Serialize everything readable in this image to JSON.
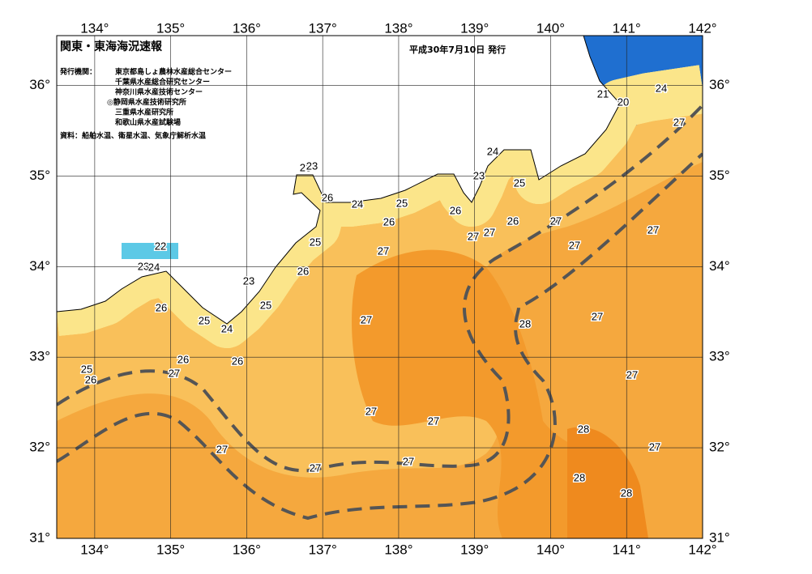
{
  "map": {
    "title": "関東・東海海況速報",
    "date": "平成30年7月10日 発行",
    "issuer_label": "発行機関：",
    "issuers": [
      "東京都島しょ農林水産総合センター",
      "千葉県水産総合研究センター",
      "神奈川県水産技術センター",
      "◎静岡県水産技術研究所",
      "三重県水産研究所",
      "和歌山県水産試験場"
    ],
    "source": "資料：船舶水温、衛星水温、気象庁解析水温",
    "xlim": [
      133.5,
      142
    ],
    "ylim": [
      31,
      36.55
    ],
    "xticks": [
      {
        "value": 134,
        "label": "134°"
      },
      {
        "value": 135,
        "label": "135°"
      },
      {
        "value": 136,
        "label": "136°"
      },
      {
        "value": 137,
        "label": "137°"
      },
      {
        "value": 138,
        "label": "138°"
      },
      {
        "value": 139,
        "label": "139°"
      },
      {
        "value": 140,
        "label": "140°"
      },
      {
        "value": 141,
        "label": "141°"
      },
      {
        "value": 142,
        "label": "142°"
      }
    ],
    "yticks": [
      {
        "value": 31,
        "label": "31°"
      },
      {
        "value": 32,
        "label": "32°"
      },
      {
        "value": 33,
        "label": "33°"
      },
      {
        "value": 34,
        "label": "34°"
      },
      {
        "value": 35,
        "label": "35°"
      },
      {
        "value": 36,
        "label": "36°"
      }
    ],
    "contour_labels": [
      24,
      21,
      20,
      27,
      24,
      23,
      25,
      23,
      23,
      26,
      24,
      25,
      26,
      26,
      26,
      27,
      27,
      27,
      27,
      27,
      25,
      27,
      22,
      23,
      24,
      26,
      23,
      25,
      26,
      25,
      24,
      27,
      28,
      27,
      26,
      26,
      25,
      26,
      27,
      27,
      27,
      27,
      28,
      27,
      27,
      27,
      27,
      28,
      28
    ]
  }
}
